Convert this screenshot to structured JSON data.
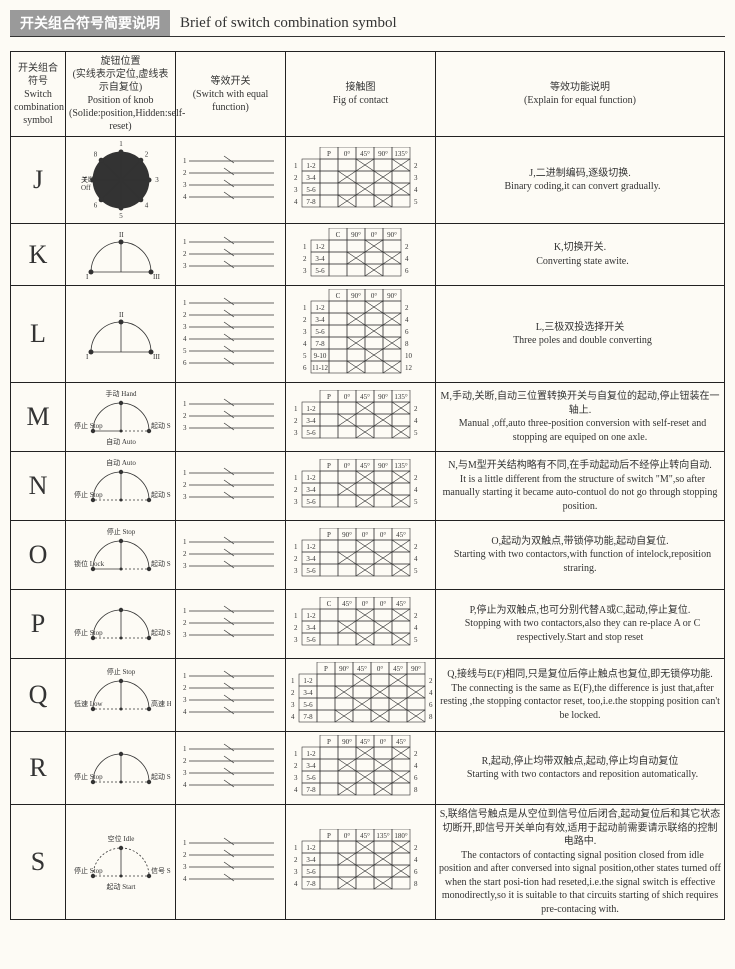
{
  "title_cn": "开关组合符号简要说明",
  "title_en": "Brief of switch combination symbol",
  "header": {
    "col1_cn": "开关组合符号",
    "col1_en": "Switch combination symbol",
    "col2_cn": "旋钮位置",
    "col2_sub": "(实线表示定位,虚线表示自复位)",
    "col2_en": "Position of knob",
    "col2_en_sub": "(Solide:position,Hidden:self-reset)",
    "col3_cn": "等效开关",
    "col3_en": "(Switch with equal function)",
    "col4_cn": "接触图",
    "col4_en": "Fig of contact",
    "col5_cn": "等效功能说明",
    "col5_en": "(Explain for equal function)"
  },
  "rows": [
    {
      "sym": "J",
      "knob": {
        "type": "circle8",
        "labels": [
          "1",
          "2",
          "3",
          "4",
          "5",
          "6",
          "7",
          "8"
        ],
        "off_cn": "关断",
        "off_en": "Off"
      },
      "contact": {
        "cols": [
          "P",
          "0°",
          "45°",
          "90°",
          "135°"
        ],
        "pairs": [
          "1-2",
          "3-4",
          "5-6",
          "7-8"
        ],
        "outR": [
          "2",
          "3",
          "4",
          "5"
        ],
        "marks": [
          [
            1
          ],
          [
            2
          ],
          [
            3
          ],
          [
            4
          ],
          [
            1,
            2
          ],
          [
            2,
            3
          ],
          [
            3,
            4
          ],
          [
            1,
            4
          ]
        ]
      },
      "explain_cn": "J,二进制编码,逐级切换.",
      "explain_en": "Binary coding,it can convert gradually."
    },
    {
      "sym": "K",
      "knob": {
        "type": "semi3",
        "labels": [
          "I",
          "II",
          "III"
        ]
      },
      "contact": {
        "cols": [
          "C",
          "90°",
          "0°",
          "90°"
        ],
        "pairs": [
          "1-2",
          "3-4",
          "5-6"
        ],
        "outR": [
          "2",
          "4",
          "6"
        ]
      },
      "explain_cn": "K,切换开关.",
      "explain_en": "Converting state awite."
    },
    {
      "sym": "L",
      "knob": {
        "type": "semi3",
        "labels": [
          "I",
          "II",
          "III"
        ]
      },
      "contact": {
        "cols": [
          "C",
          "90°",
          "0°",
          "90°"
        ],
        "pairs": [
          "1-2",
          "3-4",
          "5-6",
          "7-8",
          "9-10",
          "11-12"
        ],
        "outR": [
          "2",
          "4",
          "6",
          "8",
          "10",
          "12"
        ]
      },
      "explain_cn": "L,三极双投选择开关",
      "explain_en": "Three poles and double converting"
    },
    {
      "sym": "M",
      "knob": {
        "type": "semi_labels",
        "top": "手动 Hand",
        "left": "停止 Stop",
        "right": "起动 Start",
        "bottom": "自动 Auto",
        "dash_right": true
      },
      "contact": {
        "cols": [
          "P",
          "0°",
          "45°",
          "90°",
          "135°"
        ],
        "pairs": [
          "1-2",
          "3-4",
          "5-6"
        ],
        "outR": [
          "2",
          "4",
          "5"
        ]
      },
      "explain_cn": "M,手动,关断,自动三位置转换开关与自复位的起动,停止钮装在一轴上.",
      "explain_en": "Manual ,off,auto three-position conversion with self-reset and stopping are equiped on one axle."
    },
    {
      "sym": "N",
      "knob": {
        "type": "semi_labels",
        "top": "自动 Auto",
        "left": "停止 Stop",
        "right": "起动 Start",
        "dash_right": true,
        "dash_left": true
      },
      "contact": {
        "cols": [
          "P",
          "0°",
          "45°",
          "90°",
          "135°"
        ],
        "pairs": [
          "1-2",
          "3-4",
          "5-6"
        ],
        "outR": [
          "2",
          "4",
          "5"
        ]
      },
      "explain_cn": "N,与M型开关结构略有不同,在手动起动后不经停止转向自动.",
      "explain_en": "It is a little different from the structure of switch \"M\",so after manually starting it became auto-contuol do not go through stopping position."
    },
    {
      "sym": "O",
      "knob": {
        "type": "semi_labels",
        "top": "停止 Stop",
        "right": "起动 Start",
        "left": "锁位 Lock",
        "dash_right": true
      },
      "contact": {
        "cols": [
          "P",
          "90°",
          "0°",
          "0°",
          "45°"
        ],
        "pairs": [
          "1-2",
          "3-4",
          "5-6"
        ],
        "outR": [
          "2",
          "4",
          "5"
        ]
      },
      "explain_cn": "O,起动为双触点,带锁停功能,起动自复位.",
      "explain_en": "Starting with two contactors,with function of intelock,reposition straring."
    },
    {
      "sym": "P",
      "knob": {
        "type": "semi_labels",
        "left": "停止 Stop",
        "right": "起动 Start",
        "dash_right": true,
        "dash_left": true
      },
      "contact": {
        "cols": [
          "C",
          "45°",
          "0°",
          "0°",
          "45°"
        ],
        "pairs": [
          "1-2",
          "3-4",
          "5-6"
        ],
        "outR": [
          "2",
          "4",
          "5"
        ]
      },
      "explain_cn": "P,停止为双触点,也可分别代替A或C,起动,停止复位.",
      "explain_en": "Stopping with two contactors,also they can re-place A or C respectively.Start and stop reset"
    },
    {
      "sym": "Q",
      "knob": {
        "type": "semi_labels",
        "top": "停止 Stop",
        "left": "低速 Low",
        "right": "高速 High",
        "dash_left": true,
        "dash_right": true
      },
      "contact": {
        "cols": [
          "P",
          "90°",
          "45°",
          "0°",
          "45°",
          "90°"
        ],
        "pairs": [
          "1-2",
          "3-4",
          "5-6",
          "7-8"
        ],
        "outR": [
          "2",
          "4",
          "6",
          "8"
        ]
      },
      "explain_cn": "Q,接线与E(F)相同,只是复位后停止触点也复位,即无锁停功能.",
      "explain_en": "The connecting is the same as E(F),the difference is just that,after resting ,the stopping contactor reset, too,i.e.the stopping position can't be locked."
    },
    {
      "sym": "R",
      "knob": {
        "type": "semi_labels",
        "left": "停止 Stop",
        "right": "起动 Start",
        "dash_right": true,
        "dash_left": true
      },
      "contact": {
        "cols": [
          "P",
          "90°",
          "45°",
          "0°",
          "45°"
        ],
        "pairs": [
          "1-2",
          "3-4",
          "5-6",
          "7-8"
        ],
        "outR": [
          "2",
          "4",
          "6",
          "8"
        ]
      },
      "explain_cn": "R,起动,停止均带双触点,起动,停止均自动复位",
      "explain_en": "Starting with two contactors and reposition automatically."
    },
    {
      "sym": "S",
      "knob": {
        "type": "semi_labels",
        "top": "空位 Idle",
        "right": "信号 Signal",
        "left": "停止 Stop",
        "bottom": "起动 Start",
        "dash_all": true
      },
      "contact": {
        "cols": [
          "P",
          "0°",
          "45°",
          "135°",
          "180°"
        ],
        "pairs": [
          "1-2",
          "3-4",
          "5-6",
          "7-8"
        ],
        "outR": [
          "2",
          "4",
          "6",
          "8"
        ]
      },
      "explain_cn": "S,联络信号触点是从空位到信号位后闭合,起动复位后和其它状态切断开,即信号开关单向有效,适用于起动前需要请示联络的控制电路中.",
      "explain_en": "The contactors of contacting signal position closed from idle position and after conversed into signal position,other states turned off when the start posi-tion had reseted,i.e.the signal switch is effective monodirectly,so it is suitable to that circuits starting of shich requires pre-contacing with."
    }
  ]
}
